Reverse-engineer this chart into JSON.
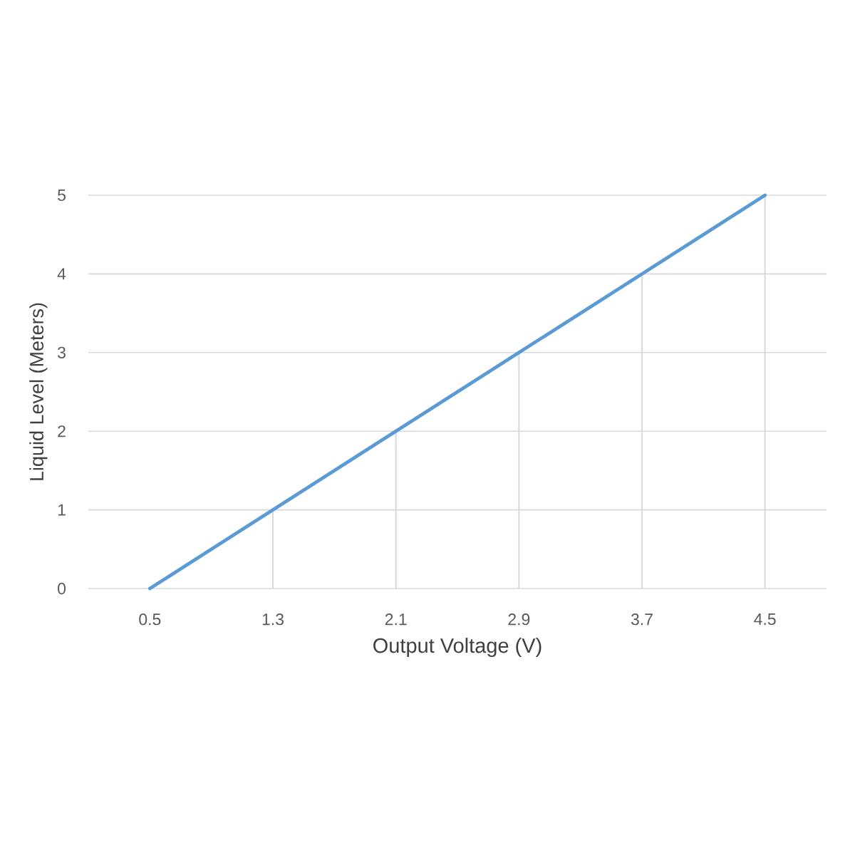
{
  "chart_data": {
    "type": "line",
    "xlabel": "Output Voltage (V)",
    "ylabel": "Liquid Level (Meters)",
    "x": [
      0.5,
      1.3,
      2.1,
      2.9,
      3.7,
      4.5
    ],
    "series": [
      {
        "type": "bar",
        "color": "#d9d9d9",
        "values": [
          0,
          1,
          2,
          3,
          4,
          5
        ]
      },
      {
        "color": "#5b9bd5",
        "values": [
          0,
          1,
          2,
          3,
          4,
          5
        ]
      }
    ],
    "xlim": [
      0.1,
      4.9
    ],
    "ylim": [
      0,
      5
    ],
    "xticks": [
      0.5,
      1.3,
      2.1,
      2.9,
      3.7,
      4.5
    ],
    "yticks": [
      0,
      1,
      2,
      3,
      4,
      5
    ],
    "grid": "y",
    "marker": "none",
    "line_style": "solid"
  }
}
